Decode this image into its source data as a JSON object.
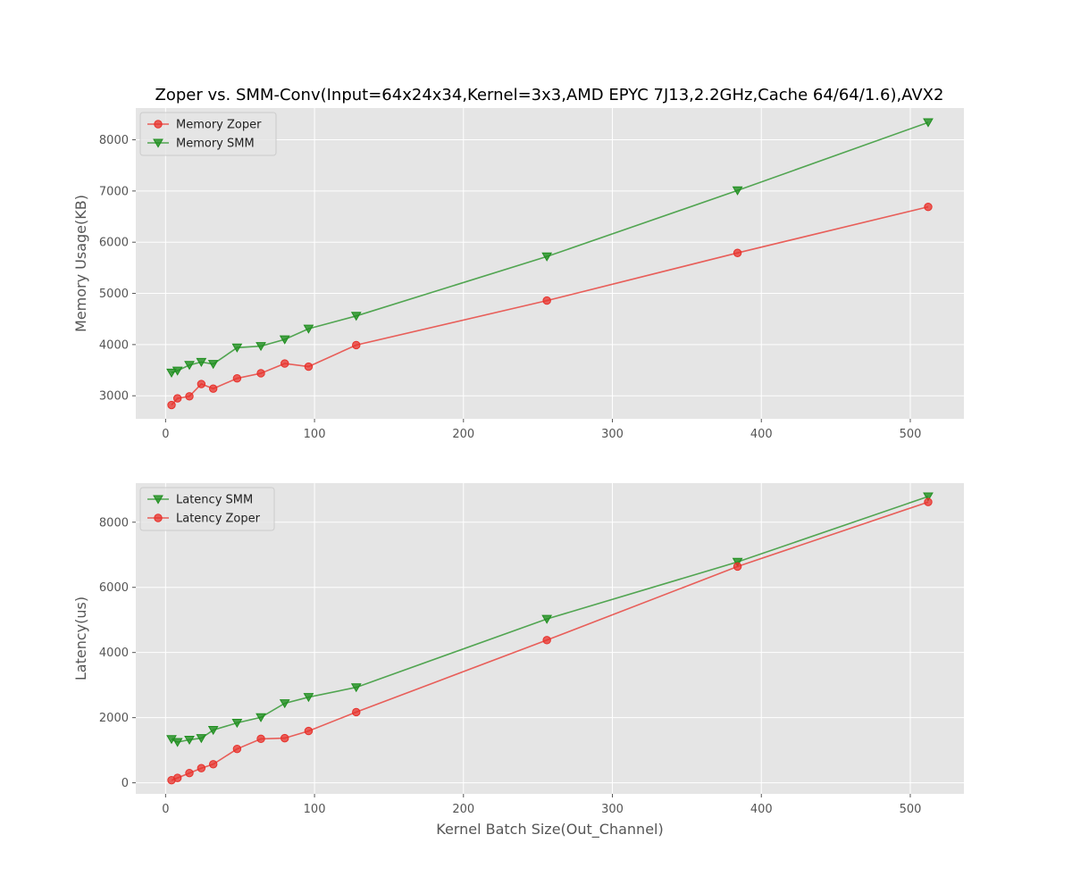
{
  "figure": {
    "title": "Zoper vs. SMM-Conv(Input=64x24x34,Kernel=3x3,AMD EPYC 7J13,2.2GHz,Cache 64/64/1.6),AVX2"
  },
  "colors": {
    "zoper": "#e8302a",
    "smm": "#1f8f1f",
    "plot_bg": "#e5e5e5",
    "grid": "#ffffff"
  },
  "chart_data": [
    {
      "type": "line",
      "title": "Zoper vs. SMM-Conv(Input=64x24x34,Kernel=3x3,AMD EPYC 7J13,2.2GHz,Cache 64/64/1.6),AVX2",
      "xlabel": "",
      "ylabel": "Memory Usage(KB)",
      "x": [
        4,
        8,
        16,
        24,
        32,
        48,
        64,
        80,
        96,
        128,
        256,
        384,
        512
      ],
      "xlim": [
        -20,
        536
      ],
      "ylim": [
        2550,
        8620
      ],
      "xticks": [
        0,
        100,
        200,
        300,
        400,
        500
      ],
      "yticks": [
        3000,
        4000,
        5000,
        6000,
        7000,
        8000
      ],
      "grid": true,
      "legend_position": "top-left",
      "series": [
        {
          "name": "Memory Zoper",
          "marker": "circle",
          "color": "#e8302a",
          "values": [
            2820,
            2950,
            2990,
            3230,
            3140,
            3340,
            3440,
            3630,
            3570,
            3990,
            4860,
            5790,
            6690
          ]
        },
        {
          "name": "Memory SMM",
          "marker": "triangle-down",
          "color": "#1f8f1f",
          "values": [
            3450,
            3490,
            3600,
            3660,
            3620,
            3940,
            3970,
            4100,
            4310,
            4560,
            5720,
            7010,
            8340
          ]
        }
      ]
    },
    {
      "type": "line",
      "title": "",
      "xlabel": "Kernel Batch Size(Out_Channel)",
      "ylabel": "Latency(us)",
      "x": [
        4,
        8,
        16,
        24,
        32,
        48,
        64,
        80,
        96,
        128,
        256,
        384,
        512
      ],
      "xlim": [
        -20,
        536
      ],
      "ylim": [
        -340,
        9200
      ],
      "xticks": [
        0,
        100,
        200,
        300,
        400,
        500
      ],
      "yticks": [
        0,
        2000,
        4000,
        6000,
        8000
      ],
      "grid": true,
      "legend_position": "top-left",
      "series": [
        {
          "name": "Latency SMM",
          "marker": "triangle-down",
          "color": "#1f8f1f",
          "values": [
            1340,
            1250,
            1320,
            1370,
            1620,
            1840,
            2010,
            2440,
            2630,
            2930,
            5030,
            6780,
            8790
          ]
        },
        {
          "name": "Latency Zoper",
          "marker": "circle",
          "color": "#e8302a",
          "values": [
            80,
            150,
            300,
            450,
            570,
            1040,
            1350,
            1370,
            1590,
            2170,
            4380,
            6640,
            8620
          ]
        }
      ]
    }
  ]
}
